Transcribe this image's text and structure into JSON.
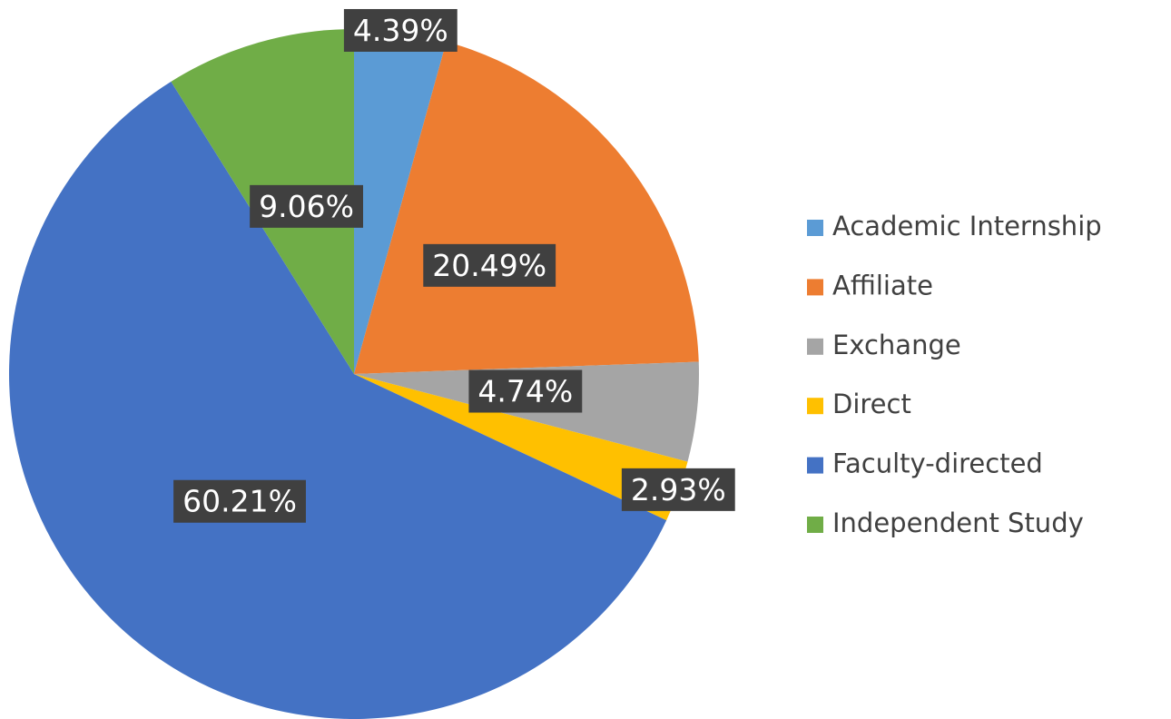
{
  "chart_data": {
    "type": "pie",
    "categories": [
      "Academic Internship",
      "Affiliate",
      "Exchange",
      "Direct",
      "Faculty-directed",
      "Independent Study"
    ],
    "values": [
      4.39,
      20.49,
      4.74,
      2.93,
      60.21,
      9.06
    ],
    "value_labels": [
      "4.39%",
      "20.49%",
      "4.74%",
      "2.93%",
      "60.21%",
      "9.06%"
    ],
    "colors": [
      "#5b9bd5",
      "#ed7d31",
      "#a5a5a5",
      "#ffc000",
      "#4472c4",
      "#70ad47"
    ],
    "legend": "right"
  }
}
